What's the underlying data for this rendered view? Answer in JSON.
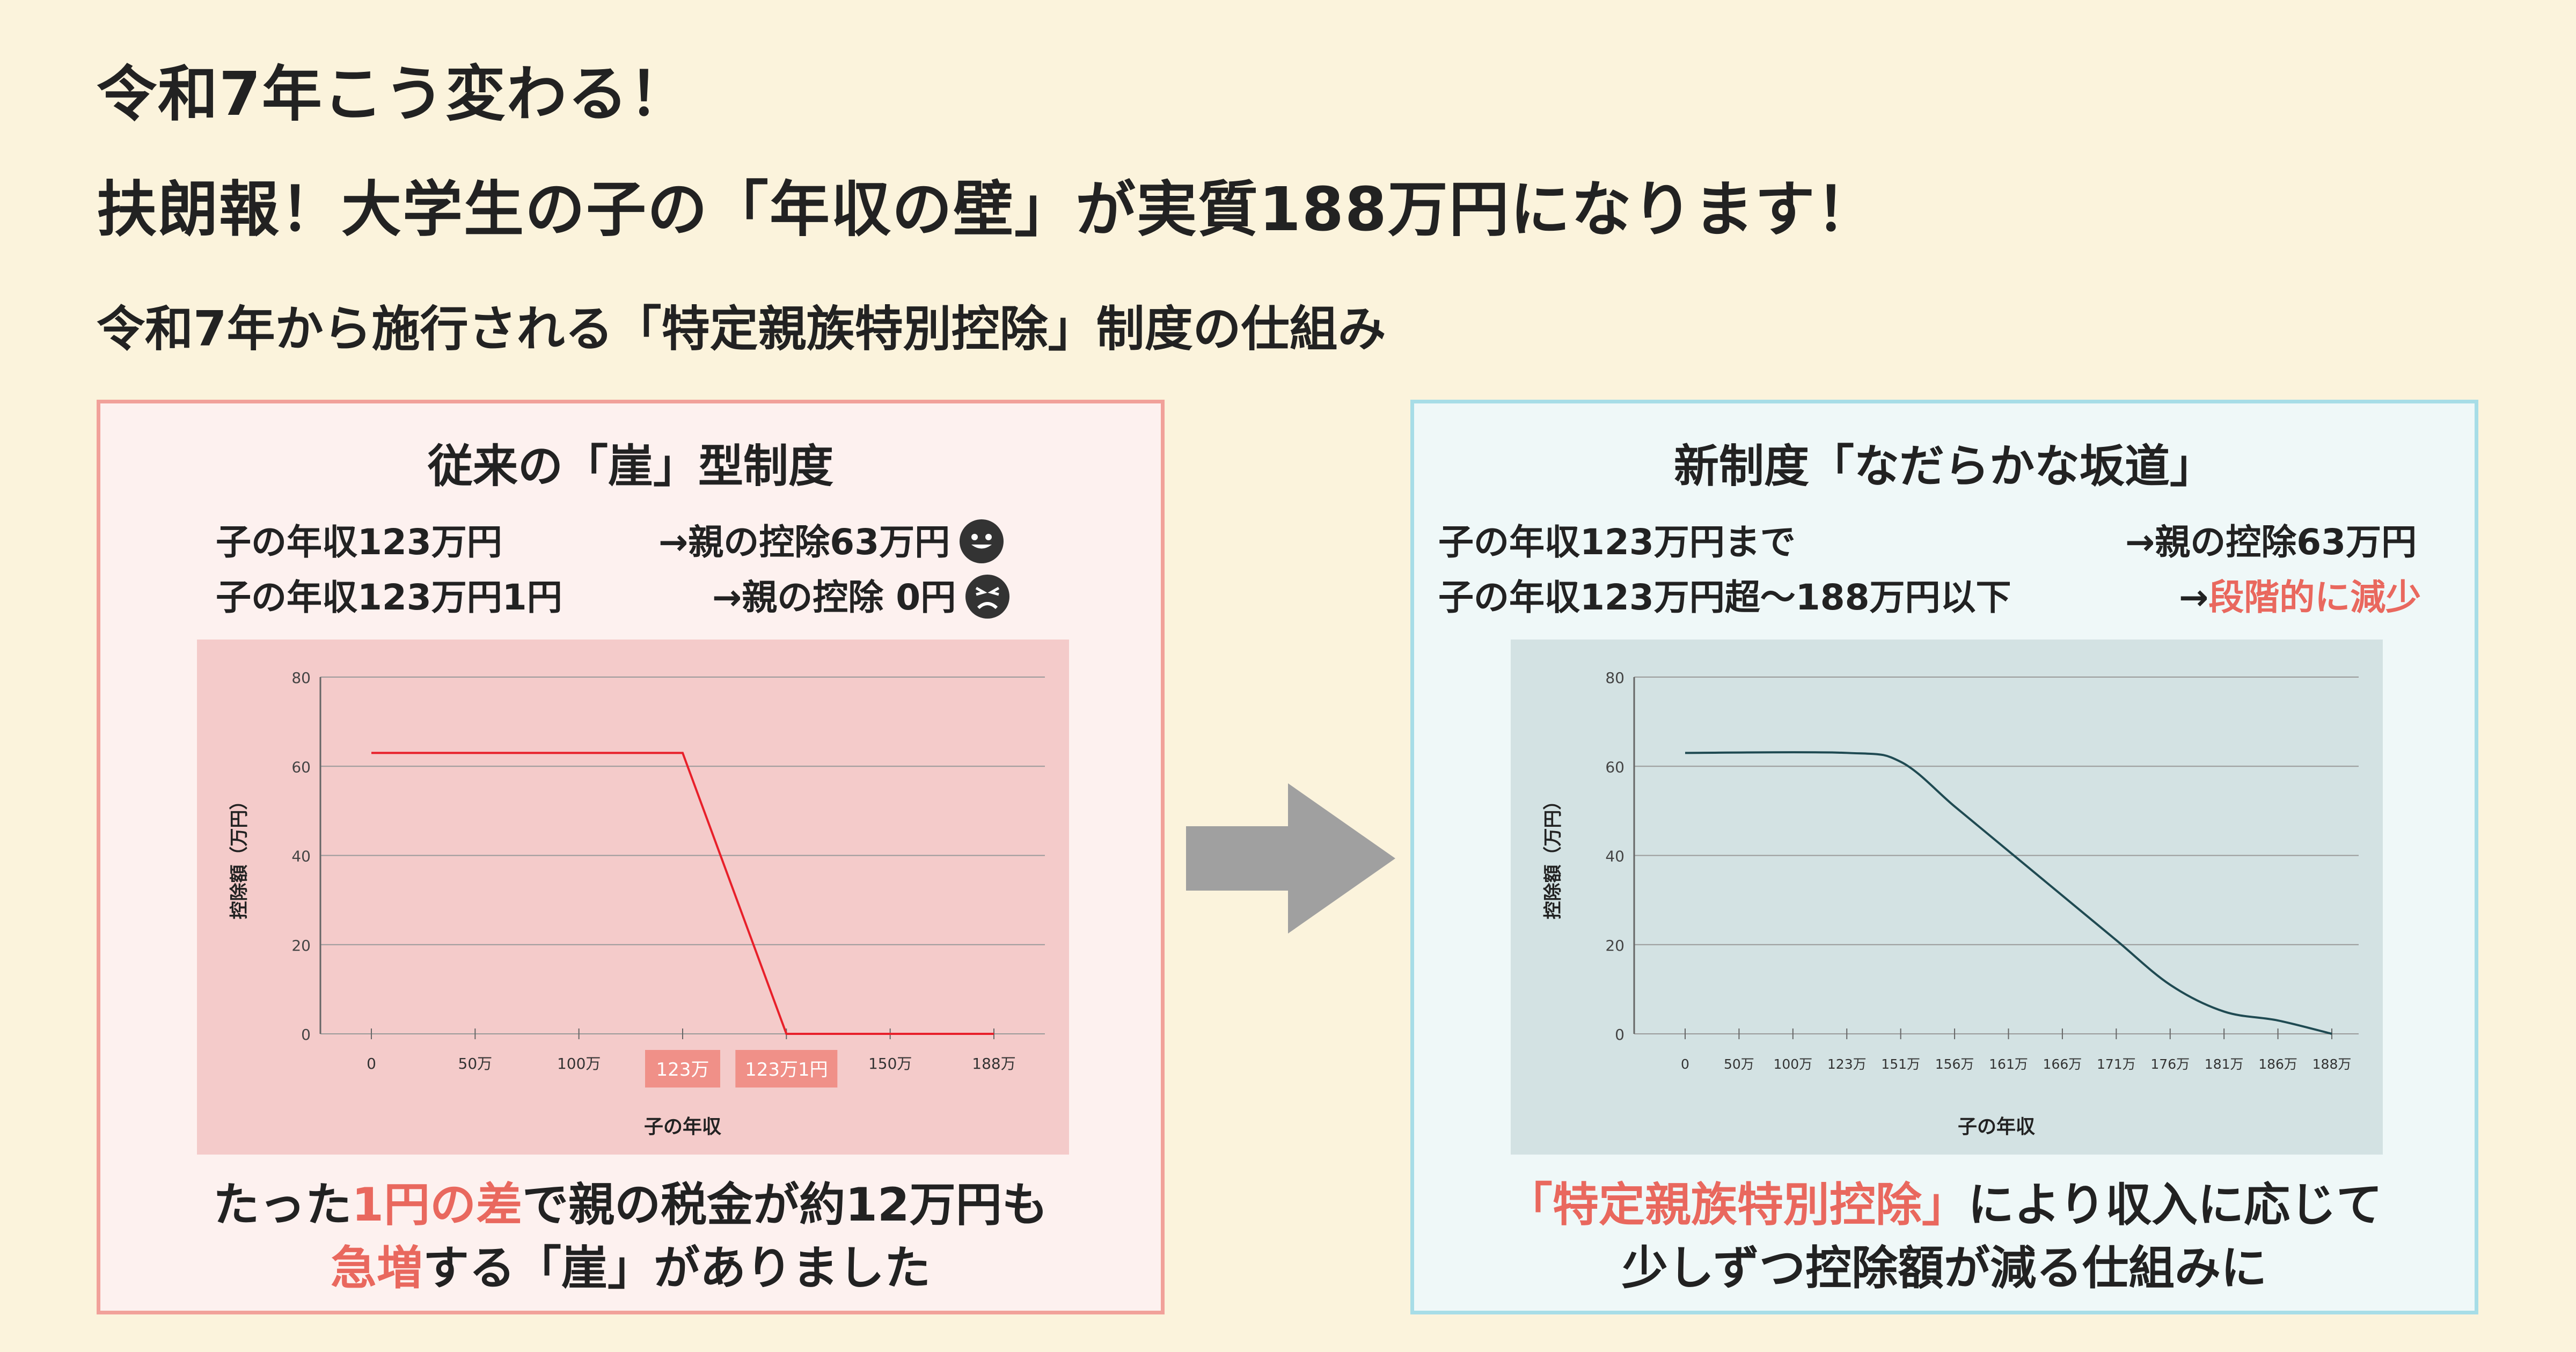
{
  "header": {
    "line1": "令和7年こう変わる！",
    "line2": "扶朗報！大学生の子の「年収の壁」が実質188万円になります！",
    "subtitle": "令和7年から施行される「特定親族特別控除」制度の仕組み"
  },
  "left": {
    "title": "従来の「崖」型制度",
    "row1_left": "子の年収123万円",
    "row1_right": "→親の控除63万円",
    "row2_left": "子の年収123万円1円",
    "row2_right": "→親の控除 0円",
    "caption1_a": "たった",
    "caption1_b": "1円の差",
    "caption1_c": "で親の税金が約12万円も",
    "caption2_a": "急増",
    "caption2_b": "する「崖」がありました"
  },
  "right": {
    "title": "新制度「なだらかな坂道」",
    "row1_left": "子の年収123万円まで",
    "row1_right": "→親の控除63万円",
    "row2_left": "子の年収123万円超〜188万円以下",
    "row2_right_a": "→",
    "row2_right_b": "段階的に減少",
    "caption1_a": "「特定親族特別控除」",
    "caption1_b": "により収入に応じて",
    "caption2": "少しずつ控除額が減る仕組みに"
  },
  "colors": {
    "accent_red": "#e9685e",
    "line_red": "#e8202a",
    "line_teal": "#1f4a52",
    "tag_bg": "#f09088",
    "arrow_gray": "#a0a0a0"
  },
  "icons": {
    "smile": "smile-face-icon",
    "angry": "angry-face-icon",
    "arrow": "right-arrow-icon"
  },
  "chart_data": [
    {
      "type": "line",
      "ylabel": "控除額（万円）",
      "xlabel": "子の年収",
      "ylim": [
        0,
        80
      ],
      "yticks": [
        0,
        20,
        40,
        60,
        80
      ],
      "xticks": [
        "0",
        "50万",
        "100万",
        "123万",
        "123万1円",
        "150万",
        "188万"
      ],
      "highlighted_ticks": [
        "123万",
        "123万1円"
      ],
      "series": [
        {
          "x": [
            0,
            123,
            123.0001,
            188
          ],
          "y": [
            63,
            63,
            0,
            0
          ]
        }
      ],
      "grid": true
    },
    {
      "type": "line",
      "ylabel": "控除額（万円）",
      "xlabel": "子の年収",
      "ylim": [
        0,
        80
      ],
      "yticks": [
        0,
        20,
        40,
        60,
        80
      ],
      "xticks": [
        "0",
        "50万",
        "100万",
        "123万",
        "151万",
        "156万",
        "161万",
        "166万",
        "171万",
        "176万",
        "181万",
        "186万",
        "188万"
      ],
      "series": [
        {
          "x_index": [
            0,
            3,
            4,
            5,
            6,
            7,
            8,
            9,
            10,
            11,
            12
          ],
          "y": [
            63,
            63,
            61,
            51,
            41,
            31,
            21,
            11,
            5,
            3,
            0
          ]
        }
      ],
      "grid": true
    }
  ]
}
